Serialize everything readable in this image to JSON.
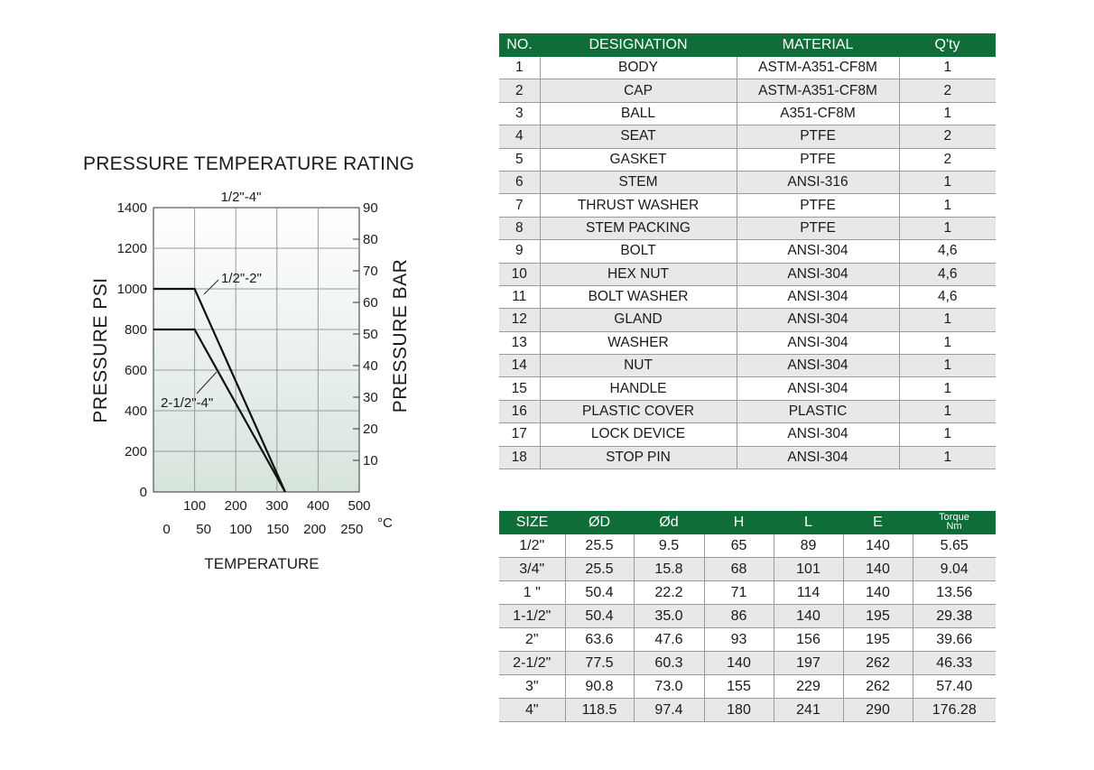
{
  "chart_title": "PRESSURE TEMPERATURE RATING",
  "chart_data": {
    "type": "line",
    "title": "PRESSURE TEMPERATURE RATING",
    "xlabel": "TEMPERATURE",
    "ylabel": "PRESSURE PSI",
    "y2label": "PRESSURE BAR",
    "top_label": "1/2\"-4\"",
    "xunit2": "°C",
    "xlim": [
      0,
      500
    ],
    "ylim": [
      0,
      1400
    ],
    "y2lim": [
      0,
      90
    ],
    "x_ticks": [
      "100",
      "200",
      "300",
      "400",
      "500"
    ],
    "x2_ticks": [
      "0",
      "50",
      "100",
      "150",
      "200",
      "250"
    ],
    "y_ticks": [
      "0",
      "200",
      "400",
      "600",
      "800",
      "1000",
      "1200",
      "1400"
    ],
    "y2_ticks": [
      "10",
      "20",
      "30",
      "40",
      "50",
      "60",
      "70",
      "80",
      "90"
    ],
    "grid": true,
    "series": [
      {
        "name": "1/2\"-2\"",
        "x": [
          0,
          100,
          320
        ],
        "y": [
          1000,
          1000,
          0
        ]
      },
      {
        "name": "2-1/2\"-4\"",
        "x": [
          0,
          100,
          320
        ],
        "y": [
          800,
          800,
          0
        ]
      }
    ]
  },
  "parts_table": {
    "headers": [
      "NO.",
      "DESIGNATION",
      "MATERIAL",
      "Q'ty"
    ],
    "rows": [
      [
        "1",
        "BODY",
        "ASTM-A351-CF8M",
        "1"
      ],
      [
        "2",
        "CAP",
        "ASTM-A351-CF8M",
        "2"
      ],
      [
        "3",
        "BALL",
        "A351-CF8M",
        "1"
      ],
      [
        "4",
        "SEAT",
        "PTFE",
        "2"
      ],
      [
        "5",
        "GASKET",
        "PTFE",
        "2"
      ],
      [
        "6",
        "STEM",
        "ANSI-316",
        "1"
      ],
      [
        "7",
        "THRUST WASHER",
        "PTFE",
        "1"
      ],
      [
        "8",
        "STEM PACKING",
        "PTFE",
        "1"
      ],
      [
        "9",
        "BOLT",
        "ANSI-304",
        "4,6"
      ],
      [
        "10",
        "HEX NUT",
        "ANSI-304",
        "4,6"
      ],
      [
        "11",
        "BOLT WASHER",
        "ANSI-304",
        "4,6"
      ],
      [
        "12",
        "GLAND",
        "ANSI-304",
        "1"
      ],
      [
        "13",
        "WASHER",
        "ANSI-304",
        "1"
      ],
      [
        "14",
        "NUT",
        "ANSI-304",
        "1"
      ],
      [
        "15",
        "HANDLE",
        "ANSI-304",
        "1"
      ],
      [
        "16",
        "PLASTIC COVER",
        "PLASTIC",
        "1"
      ],
      [
        "17",
        "LOCK DEVICE",
        "ANSI-304",
        "1"
      ],
      [
        "18",
        "STOP PIN",
        "ANSI-304",
        "1"
      ]
    ]
  },
  "size_table": {
    "headers": [
      "SIZE",
      "ØD",
      "Ød",
      "H",
      "L",
      "E"
    ],
    "torque_header": [
      "Torque",
      "Nm"
    ],
    "rows": [
      [
        "1/2\"",
        "25.5",
        "9.5",
        "65",
        "89",
        "140",
        "5.65"
      ],
      [
        "3/4\"",
        "25.5",
        "15.8",
        "68",
        "101",
        "140",
        "9.04"
      ],
      [
        "1 \"",
        "50.4",
        "22.2",
        "71",
        "114",
        "140",
        "13.56"
      ],
      [
        "1-1/2\"",
        "50.4",
        "35.0",
        "86",
        "140",
        "195",
        "29.38"
      ],
      [
        "2\"",
        "63.6",
        "47.6",
        "93",
        "156",
        "195",
        "39.66"
      ],
      [
        "2-1/2\"",
        "77.5",
        "60.3",
        "140",
        "197",
        "262",
        "46.33"
      ],
      [
        "3\"",
        "90.8",
        "73.0",
        "155",
        "229",
        "262",
        "57.40"
      ],
      [
        "4\"",
        "118.5",
        "97.4",
        "180",
        "241",
        "290",
        "176.28"
      ]
    ]
  },
  "colors": {
    "header_green": "#0f6e37",
    "row_stripe": "#e7e8e8",
    "plot_bg_top": "#ffffff",
    "plot_bg_bottom": "#d9e6df"
  }
}
